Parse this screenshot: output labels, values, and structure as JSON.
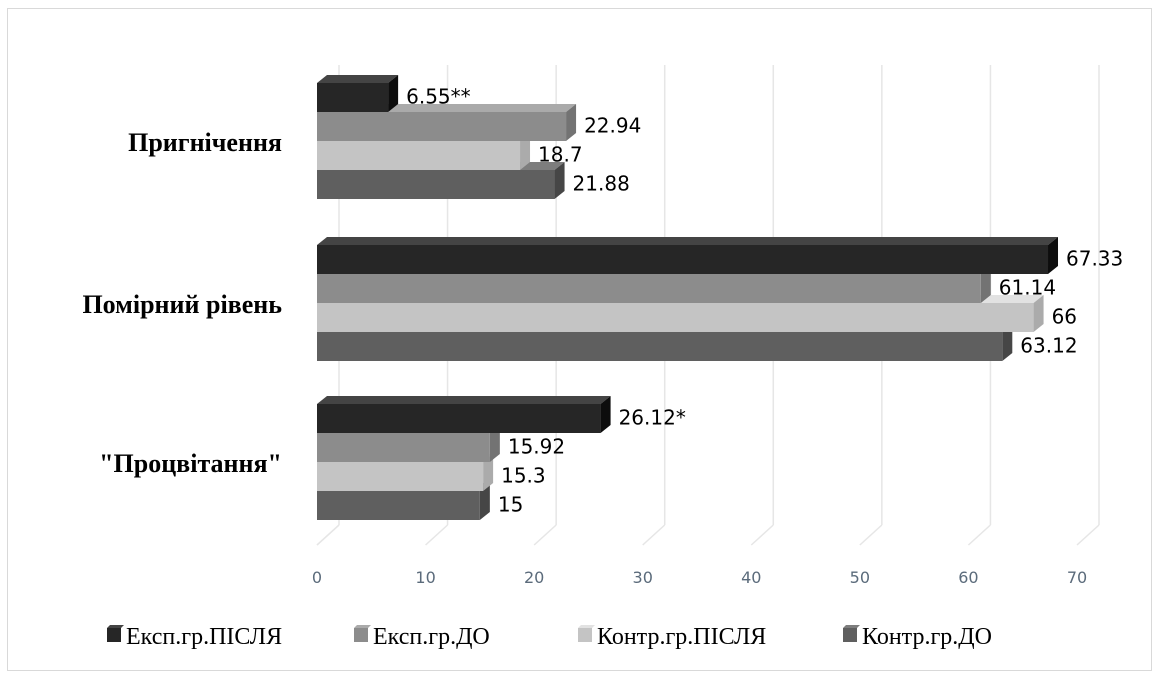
{
  "chart_data": {
    "type": "bar",
    "orientation": "horizontal",
    "categories": [
      "Пригнічення",
      "Помірний рівень",
      "\"Процвітання\""
    ],
    "series": [
      {
        "name": "Експ.гр.ПІСЛЯ",
        "color": "#262626",
        "values": [
          6.55,
          67.33,
          26.12
        ],
        "labels": [
          "6.55**",
          "67.33",
          "26.12*"
        ]
      },
      {
        "name": "Експ.гр.ДО",
        "color": "#8c8c8c",
        "values": [
          22.94,
          61.14,
          15.92
        ],
        "labels": [
          "22.94",
          "61.14",
          "15.92"
        ]
      },
      {
        "name": "Контр.гр.ПІСЛЯ",
        "color": "#c4c4c4",
        "values": [
          18.7,
          66,
          15.3
        ],
        "labels": [
          "18.7",
          "66",
          "15.3"
        ]
      },
      {
        "name": "Контр.гр.ДО",
        "color": "#5f5f5f",
        "values": [
          21.88,
          63.12,
          15
        ],
        "labels": [
          "21.88",
          "63.12",
          "15"
        ]
      }
    ],
    "xlim": [
      0,
      70
    ],
    "xticks": [
      0,
      10,
      20,
      30,
      40,
      50,
      60,
      70
    ],
    "grid": true,
    "style": "3d-bar",
    "legend_position": "bottom"
  }
}
